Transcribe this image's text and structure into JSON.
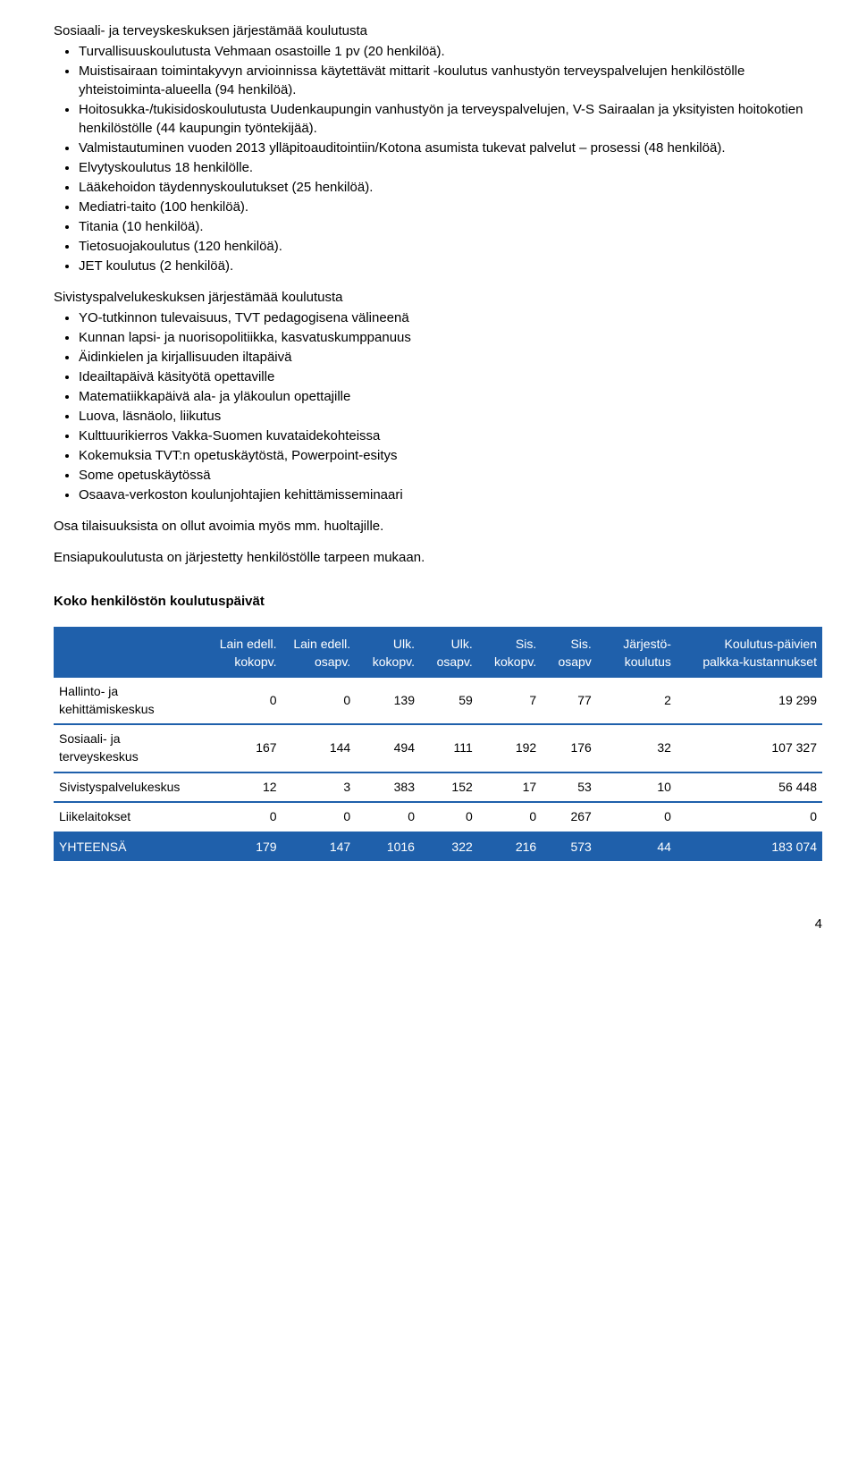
{
  "sections": [
    {
      "title": "Sosiaali- ja terveyskeskuksen järjestämää koulutusta",
      "items": [
        "Turvallisuuskoulutusta Vehmaan osastoille 1 pv (20 henkilöä).",
        "Muistisairaan toimintakyvyn arvioinnissa käytettävät mittarit -koulutus vanhustyön terveyspalvelujen henkilöstölle yhteistoiminta-alueella (94 henkilöä).",
        "Hoitosukka-/tukisidoskoulutusta Uudenkaupungin vanhustyön ja terveyspalvelujen, V-S Sairaalan ja yksityisten hoitokotien henkilöstölle (44 kaupungin työntekijää).",
        "Valmistautuminen vuoden 2013 ylläpitoauditointiin/Kotona asumista tukevat palvelut – prosessi (48 henkilöä).",
        "Elvytyskoulutus 18 henkilölle.",
        "Lääkehoidon täydennyskoulutukset (25 henkilöä).",
        "Mediatri-taito (100 henkilöä).",
        "Titania (10 henkilöä).",
        "Tietosuojakoulutus (120 henkilöä).",
        "JET koulutus (2 henkilöä)."
      ]
    },
    {
      "title": "Sivistyspalvelukeskuksen järjestämää koulutusta",
      "items": [
        "YO-tutkinnon tulevaisuus, TVT pedagogisena välineenä",
        "Kunnan lapsi- ja nuorisopolitiikka, kasvatuskumppanuus",
        "Äidinkielen ja kirjallisuuden iltapäivä",
        "Ideailtapäivä käsityötä opettaville",
        "Matematiikkapäivä ala- ja yläkoulun opettajille",
        "Luova, läsnäolo, liikutus",
        "Kulttuurikierros Vakka-Suomen kuvataidekohteissa",
        "Kokemuksia TVT:n opetuskäytöstä, Powerpoint-esitys",
        "Some opetuskäytössä",
        "Osaava-verkoston koulunjohtajien kehittämisseminaari"
      ]
    }
  ],
  "paragraphs": [
    "Osa tilaisuuksista on ollut avoimia myös mm. huoltajille.",
    "Ensiapukoulutusta on järjestetty henkilöstölle tarpeen mukaan."
  ],
  "table": {
    "title": "Koko henkilöstön koulutuspäivät",
    "header_bg": "#1f60ab",
    "header_fg": "#ffffff",
    "row_border_color": "#1f60ab",
    "columns": [
      "",
      "Lain edell. kokopv.",
      "Lain edell. osapv.",
      "Ulk. kokopv.",
      "Ulk. osapv.",
      "Sis. kokopv.",
      "Sis. osapv",
      "Järjestö-koulutus",
      "Koulutus-päivien palkka-kustannukset"
    ],
    "rows": [
      {
        "label": "Hallinto- ja kehittämiskeskus",
        "values": [
          "0",
          "0",
          "139",
          "59",
          "7",
          "77",
          "2",
          "19 299"
        ]
      },
      {
        "label": "Sosiaali- ja terveyskeskus",
        "values": [
          "167",
          "144",
          "494",
          "111",
          "192",
          "176",
          "32",
          "107 327"
        ]
      },
      {
        "label": "Sivistyspalvelukeskus",
        "values": [
          "12",
          "3",
          "383",
          "152",
          "17",
          "53",
          "10",
          "56 448"
        ]
      },
      {
        "label": "Liikelaitokset",
        "values": [
          "0",
          "0",
          "0",
          "0",
          "0",
          "267",
          "0",
          "0"
        ]
      }
    ],
    "total": {
      "label": "YHTEENSÄ",
      "values": [
        "179",
        "147",
        "1016",
        "322",
        "216",
        "573",
        "44",
        "183 074"
      ]
    }
  },
  "page_number": "4"
}
